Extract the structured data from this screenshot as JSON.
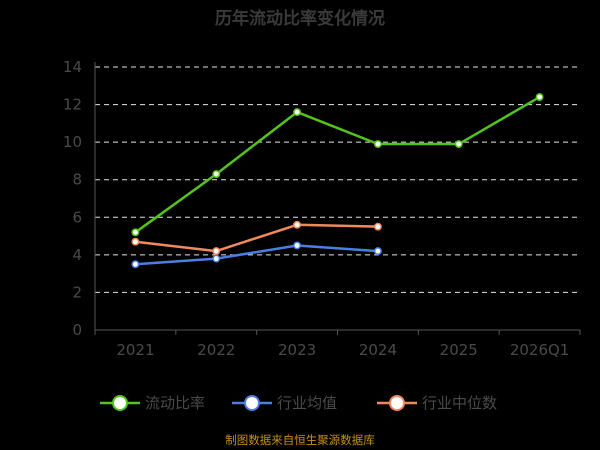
{
  "chart_data": {
    "type": "line",
    "title": "历年流动比率变化情况",
    "categories": [
      "2021",
      "2022",
      "2023",
      "2024",
      "2025",
      "2026Q1"
    ],
    "ylim": [
      0,
      14
    ],
    "yticks": [
      "0",
      "2",
      "4",
      "6",
      "8",
      "10",
      "12",
      "14"
    ],
    "grid": true,
    "legend_position": "bottom",
    "series": [
      {
        "name": "流动比率",
        "color": "#52c41a",
        "values": [
          5.2,
          8.3,
          11.6,
          9.9,
          9.9,
          12.4
        ]
      },
      {
        "name": "行业均值",
        "color": "#4a7fe0",
        "values": [
          3.5,
          3.8,
          4.5,
          4.2,
          null,
          null
        ]
      },
      {
        "name": "行业中位数",
        "color": "#f08a5d",
        "values": [
          4.7,
          4.2,
          5.6,
          5.5,
          null,
          null
        ]
      }
    ],
    "source": "制图数据来自恒生聚源数据库"
  }
}
